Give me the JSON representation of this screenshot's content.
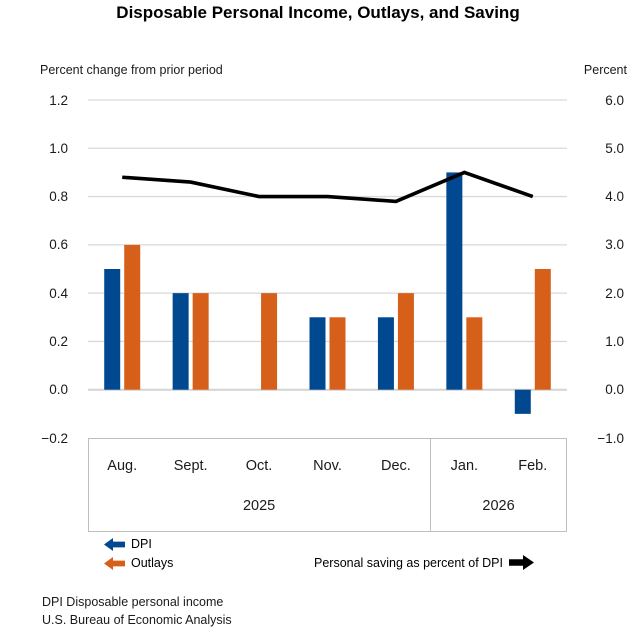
{
  "title": "Disposable Personal Income, Outlays, and Saving",
  "chart_data": {
    "type": "bar",
    "subtype": "grouped-bar-with-line-dual-axis",
    "categories": [
      "Aug.",
      "Sept.",
      "Oct.",
      "Nov.",
      "Dec.",
      "Jan.",
      "Feb."
    ],
    "year_groups": [
      {
        "label": "2025",
        "start": 0,
        "end": 4
      },
      {
        "label": "2026",
        "start": 5,
        "end": 6
      }
    ],
    "left_axis": {
      "caption": "Percent change from prior period",
      "min": -0.2,
      "max": 1.2,
      "tick_values": [
        1.2,
        1.0,
        0.8,
        0.6,
        0.4,
        0.2,
        0.0,
        -0.2
      ],
      "tick_labels": [
        "1.2",
        "1.0",
        "0.8",
        "0.6",
        "0.4",
        "0.2",
        "0.0",
        "−0.2"
      ]
    },
    "right_axis": {
      "caption": "Percent",
      "min": -1.0,
      "max": 6.0,
      "tick_values": [
        6.0,
        5.0,
        4.0,
        3.0,
        2.0,
        1.0,
        0.0,
        -1.0
      ],
      "tick_labels": [
        "6.0",
        "5.0",
        "4.0",
        "3.0",
        "2.0",
        "1.0",
        "0.0",
        "−1.0"
      ]
    },
    "series": [
      {
        "name": "DPI",
        "type": "bar",
        "axis": "left",
        "color": "#004990",
        "values": [
          0.5,
          0.4,
          0.0,
          0.3,
          0.3,
          0.9,
          -0.1
        ]
      },
      {
        "name": "Outlays",
        "type": "bar",
        "axis": "left",
        "color": "#D6601A",
        "values": [
          0.6,
          0.4,
          0.4,
          0.3,
          0.4,
          0.3,
          0.5
        ]
      },
      {
        "name": "Personal saving as percent of DPI",
        "type": "line",
        "axis": "right",
        "color": "#000000",
        "values": [
          4.4,
          4.3,
          4.0,
          4.0,
          3.9,
          4.5,
          4.0
        ]
      }
    ],
    "grid": true,
    "legend_position": "bottom"
  },
  "legend": {
    "dpi_label": "DPI",
    "outlays_label": "Outlays",
    "line_label": "Personal saving as percent of DPI"
  },
  "footnotes": {
    "line1": "DPI Disposable personal income",
    "line2": "U.S. Bureau of Economic Analysis"
  },
  "colors": {
    "dpi_bar": "#004990",
    "outlays_bar": "#D6601A",
    "saving_line": "#000000",
    "gridline": "#D9D9D9",
    "zero_line": "#D3D3D3",
    "axis_box_border": "#BFBFBF"
  }
}
